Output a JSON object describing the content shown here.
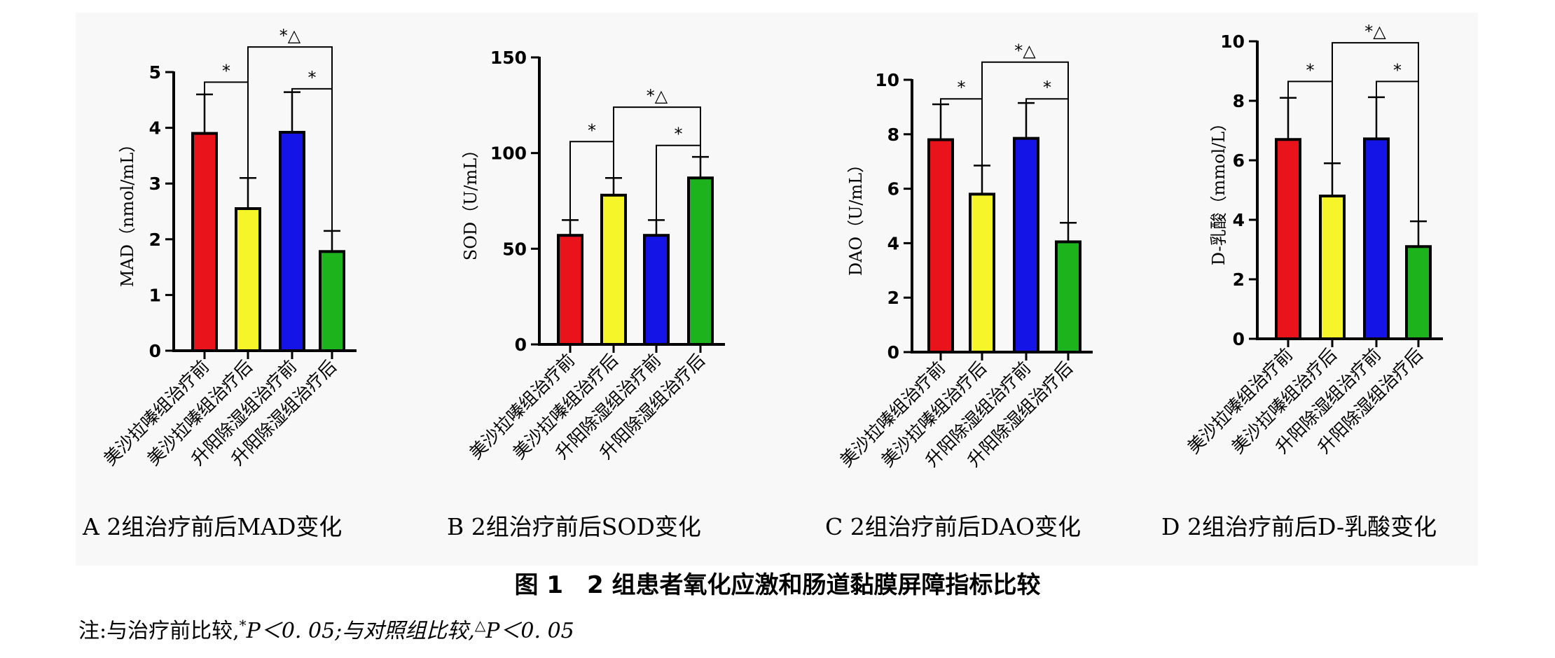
{
  "chart_data": [
    {
      "type": "bar",
      "categories": [
        "美沙拉嗪组治疗前",
        "美沙拉嗪组治疗后",
        "升阳除湿组治疗前",
        "升阳除湿组治疗后"
      ],
      "values": [
        3.9,
        2.55,
        3.92,
        1.78
      ],
      "errors": [
        0.7,
        0.55,
        0.72,
        0.37
      ],
      "colors": [
        "#e8131b",
        "#f5f52a",
        "#1414e6",
        "#1cb31c"
      ],
      "ylabel": "MAD（nmol/mL）",
      "ylim": [
        0,
        5
      ],
      "yticks": [
        0,
        1,
        2,
        3,
        4,
        5
      ],
      "caption": "A 2组治疗前后MAD变化",
      "brackets": [
        {
          "from": 0,
          "to": 1,
          "label": "*",
          "level": 4.82
        },
        {
          "from": 1,
          "to": 3,
          "label": "*△",
          "level": 5.45
        },
        {
          "from": 2,
          "to": 3,
          "label": "*",
          "level": 4.7
        }
      ]
    },
    {
      "type": "bar",
      "categories": [
        "美沙拉嗪组治疗前",
        "美沙拉嗪组治疗后",
        "升阳除湿组治疗前",
        "升阳除湿组治疗后"
      ],
      "values": [
        57,
        78,
        57,
        87
      ],
      "errors": [
        8,
        9,
        8,
        11
      ],
      "colors": [
        "#e8131b",
        "#f5f52a",
        "#1414e6",
        "#1cb31c"
      ],
      "ylabel": "SOD（U/mL）",
      "ylim": [
        0,
        150
      ],
      "yticks": [
        0,
        50,
        100,
        150
      ],
      "caption": "B 2组治疗前后SOD变化",
      "brackets": [
        {
          "from": 0,
          "to": 1,
          "label": "*",
          "level": 106
        },
        {
          "from": 1,
          "to": 3,
          "label": "*△",
          "level": 124
        },
        {
          "from": 2,
          "to": 3,
          "label": "*",
          "level": 104
        }
      ]
    },
    {
      "type": "bar",
      "categories": [
        "美沙拉嗪组治疗前",
        "美沙拉嗪组治疗后",
        "升阳除湿组治疗前",
        "升阳除湿组治疗后"
      ],
      "values": [
        7.8,
        5.8,
        7.85,
        4.05
      ],
      "errors": [
        1.3,
        1.05,
        1.3,
        0.7
      ],
      "colors": [
        "#e8131b",
        "#f5f52a",
        "#1414e6",
        "#1cb31c"
      ],
      "ylabel": "DAO（U/mL）",
      "ylim": [
        0,
        10
      ],
      "yticks": [
        0,
        2,
        4,
        6,
        8,
        10
      ],
      "caption": "C 2组治疗前后DAO变化",
      "brackets": [
        {
          "from": 0,
          "to": 1,
          "label": "*",
          "level": 9.3
        },
        {
          "from": 1,
          "to": 3,
          "label": "*△",
          "level": 10.65
        },
        {
          "from": 2,
          "to": 3,
          "label": "*",
          "level": 9.3
        }
      ]
    },
    {
      "type": "bar",
      "categories": [
        "美沙拉嗪组治疗前",
        "美沙拉嗪组治疗后",
        "升阳除湿组治疗前",
        "升阳除湿组治疗后"
      ],
      "values": [
        6.7,
        4.8,
        6.72,
        3.1
      ],
      "errors": [
        1.4,
        1.1,
        1.4,
        0.85
      ],
      "colors": [
        "#e8131b",
        "#f5f52a",
        "#1414e6",
        "#1cb31c"
      ],
      "ylabel": "D-乳酸（mmol/L）",
      "ylim": [
        0,
        10
      ],
      "yticks": [
        0,
        2,
        4,
        6,
        8,
        10
      ],
      "caption": "D 2组治疗前后D-乳酸变化",
      "brackets": [
        {
          "from": 0,
          "to": 1,
          "label": "*",
          "level": 8.65
        },
        {
          "from": 1,
          "to": 3,
          "label": "*△",
          "level": 9.95
        },
        {
          "from": 2,
          "to": 3,
          "label": "*",
          "level": 8.65
        }
      ]
    }
  ],
  "figure": {
    "caption": "图 1　2 组患者氧化应激和肠道黏膜屏障指标比较",
    "note_prefix": "注:与治疗前比较,",
    "note_star": "*",
    "note_p1": "P＜0. 05;与对照组比较,",
    "note_triangle": "△",
    "note_p2": "P＜0. 05"
  }
}
